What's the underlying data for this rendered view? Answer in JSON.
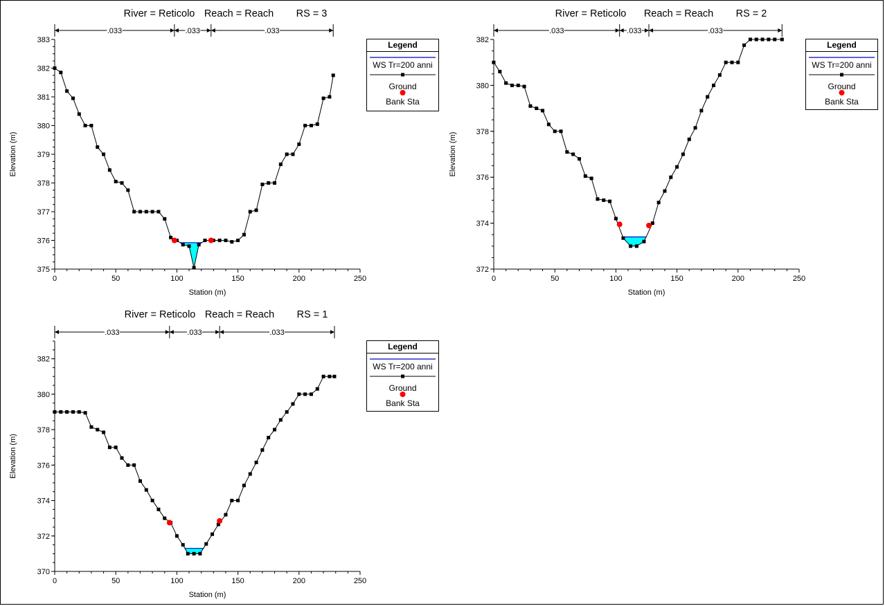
{
  "chart_data": [
    {
      "type": "line",
      "title": [
        "River = Reticolo",
        "Reach = Reach",
        "RS = 3"
      ],
      "xlabel": "Station (m)",
      "ylabel": "Elevation (m)",
      "xlim": [
        0,
        250
      ],
      "ylim": [
        375,
        383
      ],
      "xticks": [
        0,
        50,
        100,
        150,
        200,
        250
      ],
      "yticks": [
        375,
        376,
        377,
        378,
        379,
        380,
        381,
        382,
        383
      ],
      "manning": [
        {
          "from": 0,
          "to": 98,
          "value": ".033"
        },
        {
          "from": 98,
          "to": 128,
          "value": ".033"
        },
        {
          "from": 128,
          "to": 228,
          "value": ".033"
        }
      ],
      "legend": {
        "title": "Legend",
        "items": [
          "WS Tr=200 anni",
          "Ground",
          "Bank Sta"
        ]
      },
      "series": [
        {
          "name": "Ground",
          "color": "#000000",
          "points": [
            [
              0,
              382
            ],
            [
              5,
              381.85
            ],
            [
              10,
              381.2
            ],
            [
              15,
              380.95
            ],
            [
              20,
              380.4
            ],
            [
              25,
              380
            ],
            [
              30,
              380
            ],
            [
              35,
              379.25
            ],
            [
              40,
              379
            ],
            [
              45,
              378.45
            ],
            [
              50,
              378.05
            ],
            [
              55,
              378
            ],
            [
              60,
              377.75
            ],
            [
              65,
              377
            ],
            [
              70,
              377
            ],
            [
              75,
              377
            ],
            [
              80,
              377
            ],
            [
              85,
              377
            ],
            [
              90,
              376.75
            ],
            [
              95,
              376.1
            ],
            [
              100,
              376
            ],
            [
              105,
              375.85
            ],
            [
              110,
              375.8
            ],
            [
              114,
              375.05
            ],
            [
              118,
              375.85
            ],
            [
              123,
              376
            ],
            [
              130,
              376
            ],
            [
              135,
              376
            ],
            [
              140,
              376
            ],
            [
              145,
              375.95
            ],
            [
              150,
              376
            ],
            [
              155,
              376.2
            ],
            [
              160,
              377
            ],
            [
              165,
              377.05
            ],
            [
              170,
              377.95
            ],
            [
              175,
              378
            ],
            [
              180,
              378
            ],
            [
              185,
              378.65
            ],
            [
              190,
              379
            ],
            [
              195,
              379
            ],
            [
              200,
              379.35
            ],
            [
              205,
              380
            ],
            [
              210,
              380
            ],
            [
              215,
              380.05
            ],
            [
              220,
              380.95
            ],
            [
              225,
              381
            ],
            [
              228,
              381.75
            ]
          ]
        },
        {
          "name": "WS Tr=200 anni",
          "color": "#0000cc",
          "elevation": 375.92,
          "fill": "#00ffff"
        },
        {
          "name": "Bank Sta",
          "color": "#ff0000",
          "points": [
            [
              98,
              376
            ],
            [
              128,
              376
            ]
          ]
        }
      ]
    },
    {
      "type": "line",
      "title": [
        "River = Reticolo",
        "Reach = Reach",
        "RS = 2"
      ],
      "xlabel": "Station (m)",
      "ylabel": "Elevation (m)",
      "xlim": [
        0,
        250
      ],
      "ylim": [
        372,
        382
      ],
      "xticks": [
        0,
        50,
        100,
        150,
        200,
        250
      ],
      "yticks": [
        372,
        374,
        376,
        378,
        380,
        382
      ],
      "manning": [
        {
          "from": 0,
          "to": 103,
          "value": ".033"
        },
        {
          "from": 103,
          "to": 127,
          "value": ".033"
        },
        {
          "from": 127,
          "to": 236,
          "value": ".033"
        }
      ],
      "legend": {
        "title": "Legend",
        "items": [
          "WS Tr=200 anni",
          "Ground",
          "Bank Sta"
        ]
      },
      "series": [
        {
          "name": "Ground",
          "color": "#000000",
          "points": [
            [
              0,
              381
            ],
            [
              5,
              380.6
            ],
            [
              10,
              380.1
            ],
            [
              15,
              380
            ],
            [
              20,
              380
            ],
            [
              25,
              379.95
            ],
            [
              30,
              379.1
            ],
            [
              35,
              379
            ],
            [
              40,
              378.9
            ],
            [
              45,
              378.3
            ],
            [
              50,
              378
            ],
            [
              55,
              378
            ],
            [
              60,
              377.1
            ],
            [
              65,
              377
            ],
            [
              70,
              376.8
            ],
            [
              75,
              376.05
            ],
            [
              80,
              375.95
            ],
            [
              85,
              375.05
            ],
            [
              90,
              375
            ],
            [
              95,
              374.95
            ],
            [
              100,
              374.2
            ],
            [
              106,
              373.35
            ],
            [
              112,
              373
            ],
            [
              117,
              373
            ],
            [
              123,
              373.2
            ],
            [
              130,
              374
            ],
            [
              135,
              374.9
            ],
            [
              140,
              375.4
            ],
            [
              145,
              376
            ],
            [
              150,
              376.45
            ],
            [
              155,
              377
            ],
            [
              160,
              377.65
            ],
            [
              165,
              378.15
            ],
            [
              170,
              378.9
            ],
            [
              175,
              379.5
            ],
            [
              180,
              380
            ],
            [
              185,
              380.45
            ],
            [
              190,
              381
            ],
            [
              195,
              381
            ],
            [
              200,
              381
            ],
            [
              205,
              381.75
            ],
            [
              210,
              382
            ],
            [
              215,
              382
            ],
            [
              220,
              382
            ],
            [
              225,
              382
            ],
            [
              230,
              382
            ],
            [
              236,
              382
            ]
          ]
        },
        {
          "name": "WS Tr=200 anni",
          "color": "#0000cc",
          "elevation": 373.4,
          "fill": "#00ffff"
        },
        {
          "name": "Bank Sta",
          "color": "#ff0000",
          "points": [
            [
              103,
              373.95
            ],
            [
              127,
              373.9
            ]
          ]
        }
      ]
    },
    {
      "type": "line",
      "title": [
        "River = Reticolo",
        "Reach = Reach",
        "RS = 1"
      ],
      "xlabel": "Station (m)",
      "ylabel": "Elevation (m)",
      "xlim": [
        0,
        250
      ],
      "ylim": [
        370,
        383
      ],
      "xticks": [
        0,
        50,
        100,
        150,
        200,
        250
      ],
      "yticks": [
        370,
        372,
        374,
        376,
        378,
        380,
        382
      ],
      "manning": [
        {
          "from": 0,
          "to": 94,
          "value": ".033"
        },
        {
          "from": 94,
          "to": 135,
          "value": ".033"
        },
        {
          "from": 135,
          "to": 229,
          "value": ".033"
        }
      ],
      "legend": {
        "title": "Legend",
        "items": [
          "WS Tr=200 anni",
          "Ground",
          "Bank Sta"
        ]
      },
      "series": [
        {
          "name": "Ground",
          "color": "#000000",
          "points": [
            [
              0,
              379
            ],
            [
              5,
              379
            ],
            [
              10,
              379
            ],
            [
              15,
              379
            ],
            [
              20,
              379
            ],
            [
              25,
              378.95
            ],
            [
              30,
              378.15
            ],
            [
              35,
              378
            ],
            [
              40,
              377.85
            ],
            [
              45,
              377
            ],
            [
              50,
              377
            ],
            [
              55,
              376.4
            ],
            [
              60,
              376
            ],
            [
              65,
              376
            ],
            [
              70,
              375.1
            ],
            [
              75,
              374.6
            ],
            [
              80,
              374
            ],
            [
              85,
              373.5
            ],
            [
              90,
              373
            ],
            [
              95,
              372.75
            ],
            [
              100,
              372
            ],
            [
              105,
              371.5
            ],
            [
              109,
              371
            ],
            [
              114,
              371
            ],
            [
              119,
              371
            ],
            [
              124,
              371.55
            ],
            [
              129,
              372.1
            ],
            [
              134,
              372.65
            ],
            [
              140,
              373.2
            ],
            [
              145,
              374
            ],
            [
              150,
              374
            ],
            [
              155,
              374.85
            ],
            [
              160,
              375.5
            ],
            [
              165,
              376.15
            ],
            [
              170,
              376.85
            ],
            [
              175,
              377.55
            ],
            [
              180,
              378
            ],
            [
              185,
              378.55
            ],
            [
              190,
              379
            ],
            [
              195,
              379.45
            ],
            [
              200,
              380
            ],
            [
              205,
              380
            ],
            [
              210,
              380
            ],
            [
              215,
              380.3
            ],
            [
              220,
              381
            ],
            [
              225,
              381
            ],
            [
              229,
              381
            ]
          ]
        },
        {
          "name": "WS Tr=200 anni",
          "color": "#0000cc",
          "elevation": 371.3,
          "fill": "#00ffff"
        },
        {
          "name": "Bank Sta",
          "color": "#ff0000",
          "points": [
            [
              94,
              372.75
            ],
            [
              135,
              372.85
            ]
          ]
        }
      ]
    }
  ]
}
